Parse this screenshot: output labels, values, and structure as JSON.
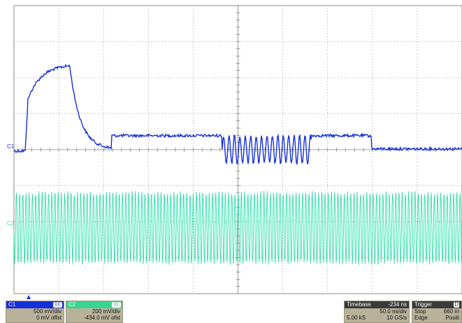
{
  "colors": {
    "grid": "#8a8a8a",
    "c1": "#1530d8",
    "c2": "#2ee0a8",
    "c1_head": "#1530d8",
    "c2_head": "#39d48f",
    "panel_head_dark": "#3a3a3a"
  },
  "markers": {
    "c1": "C1",
    "c2": "C2"
  },
  "channels": [
    {
      "name": "C1",
      "coupling": "DC",
      "scale": "500 mV/div",
      "offset": "0 mV offst"
    },
    {
      "name": "C2",
      "coupling": "DC",
      "scale": "200 mV/div",
      "offset": "-434.0 mV ofst"
    }
  ],
  "timebase": {
    "label": "Timebase",
    "delay": "-234 ns",
    "per_div": "50.0 ns/div",
    "samples": "5.00 kS",
    "rate": "10 GS/s"
  },
  "trigger": {
    "label": "Trigger",
    "coupling": "D",
    "mode": "Stop",
    "level": "660 m",
    "type": "Edge",
    "slope": "Positi"
  },
  "trigger_icon": "triangle-up"
}
